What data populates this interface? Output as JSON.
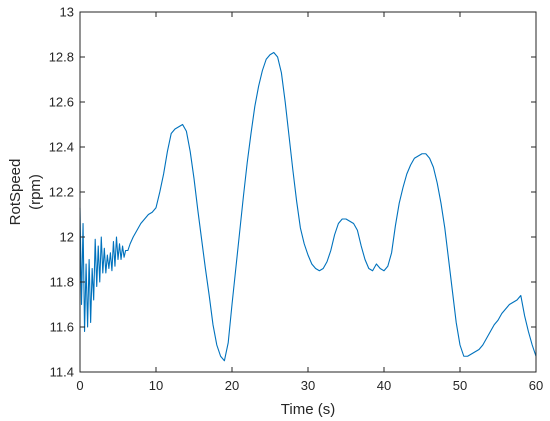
{
  "chart_data": {
    "type": "line",
    "title": "",
    "xlabel": "Time (s)",
    "ylabel_line1": "RotSpeed",
    "ylabel_line2": "(rpm)",
    "xlim": [
      0,
      60
    ],
    "ylim": [
      11.4,
      13
    ],
    "x_ticks": [
      0,
      10,
      20,
      30,
      40,
      50,
      60
    ],
    "y_ticks": [
      11.4,
      11.6,
      11.8,
      12,
      12.2,
      12.4,
      12.6,
      12.8,
      13
    ],
    "x_tick_labels": [
      "0",
      "10",
      "20",
      "30",
      "40",
      "50",
      "60"
    ],
    "y_tick_labels": [
      "11.4",
      "11.6",
      "11.8",
      "12",
      "12.2",
      "12.4",
      "12.6",
      "12.8",
      "13"
    ],
    "grid": false,
    "line_color": "#0072BD",
    "series": [
      {
        "x": [
          0,
          0.2,
          0.4,
          0.6,
          0.8,
          1.0,
          1.2,
          1.4,
          1.6,
          1.8,
          2.0,
          2.2,
          2.4,
          2.6,
          2.8,
          3.0,
          3.2,
          3.4,
          3.6,
          3.8,
          4.0,
          4.2,
          4.4,
          4.6,
          4.8,
          5.0,
          5.2,
          5.4,
          5.6,
          5.8,
          6.0,
          6.3,
          6.6,
          7.0,
          7.5,
          8.0,
          8.5,
          9.0,
          9.5,
          10.0,
          10.5,
          11.0,
          11.5,
          12.0,
          12.5,
          13.0,
          13.5,
          14.0,
          14.5,
          15.0,
          15.5,
          16.0,
          16.5,
          17.0,
          17.5,
          18.0,
          18.5,
          19.0,
          19.5,
          20.0,
          20.5,
          21.0,
          21.5,
          22.0,
          22.5,
          23.0,
          23.5,
          24.0,
          24.5,
          25.0,
          25.5,
          26.0,
          26.5,
          27.0,
          27.5,
          28.0,
          28.5,
          29.0,
          29.5,
          30.0,
          30.5,
          31.0,
          31.5,
          32.0,
          32.5,
          33.0,
          33.5,
          34.0,
          34.5,
          35.0,
          35.5,
          36.0,
          36.5,
          37.0,
          37.5,
          38.0,
          38.5,
          39.0,
          39.5,
          40.0,
          40.5,
          41.0,
          41.5,
          42.0,
          42.5,
          43.0,
          43.5,
          44.0,
          44.5,
          45.0,
          45.5,
          46.0,
          46.5,
          47.0,
          47.5,
          48.0,
          48.5,
          49.0,
          49.5,
          50.0,
          50.5,
          51.0,
          51.5,
          52.0,
          52.5,
          53.0,
          53.5,
          54.0,
          54.5,
          55.0,
          55.5,
          56.0,
          56.5,
          57.0,
          57.5,
          58.0,
          58.5,
          59.0,
          59.5,
          60.0
        ],
        "values": [
          12.13,
          11.7,
          12.06,
          11.58,
          11.88,
          11.6,
          11.9,
          11.62,
          11.86,
          11.72,
          11.99,
          11.78,
          11.96,
          11.8,
          12.0,
          11.84,
          11.95,
          11.84,
          11.92,
          11.86,
          11.93,
          11.85,
          11.98,
          11.87,
          12.0,
          11.9,
          11.97,
          11.9,
          11.96,
          11.91,
          11.94,
          11.94,
          11.97,
          12.0,
          12.03,
          12.06,
          12.08,
          12.1,
          12.11,
          12.13,
          12.2,
          12.28,
          12.38,
          12.46,
          12.48,
          12.49,
          12.5,
          12.47,
          12.38,
          12.26,
          12.12,
          11.99,
          11.86,
          11.74,
          11.61,
          11.52,
          11.47,
          11.45,
          11.53,
          11.7,
          11.86,
          12.02,
          12.18,
          12.33,
          12.46,
          12.58,
          12.67,
          12.74,
          12.79,
          12.81,
          12.82,
          12.8,
          12.73,
          12.6,
          12.45,
          12.3,
          12.16,
          12.04,
          11.97,
          11.92,
          11.88,
          11.86,
          11.85,
          11.86,
          11.89,
          11.94,
          12.01,
          12.06,
          12.08,
          12.08,
          12.07,
          12.06,
          12.03,
          11.96,
          11.9,
          11.86,
          11.85,
          11.88,
          11.86,
          11.85,
          11.87,
          11.93,
          12.05,
          12.15,
          12.22,
          12.28,
          12.32,
          12.35,
          12.36,
          12.37,
          12.37,
          12.35,
          12.31,
          12.24,
          12.15,
          12.04,
          11.9,
          11.76,
          11.62,
          11.52,
          11.47,
          11.47,
          11.48,
          11.49,
          11.5,
          11.52,
          11.55,
          11.58,
          11.61,
          11.63,
          11.66,
          11.68,
          11.7,
          11.71,
          11.72,
          11.74,
          11.65,
          11.58,
          11.52,
          11.47
        ]
      }
    ]
  }
}
